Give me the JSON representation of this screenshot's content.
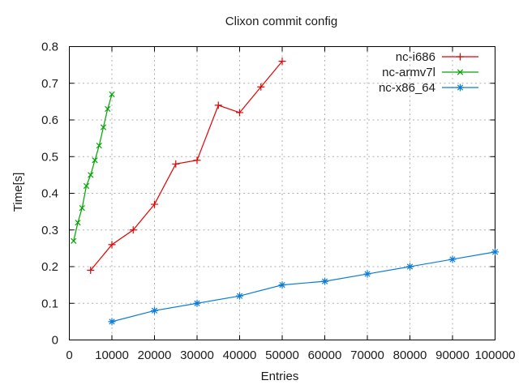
{
  "chart_data": {
    "type": "line",
    "title": "Clixon commit config",
    "xlabel": "Entries",
    "ylabel": "Time[s]",
    "xlim": [
      0,
      100000
    ],
    "ylim": [
      0,
      0.8
    ],
    "grid": true,
    "legend_position": "top-right-inside",
    "xticks": {
      "values": [
        0,
        10000,
        20000,
        30000,
        40000,
        50000,
        60000,
        70000,
        80000,
        90000,
        100000
      ],
      "labels": [
        "0",
        "10000",
        "20000",
        "30000",
        "40000",
        "50000",
        "60000",
        "70000",
        "80000",
        "90000",
        "100000"
      ]
    },
    "yticks": {
      "values": [
        0,
        0.1,
        0.2,
        0.3,
        0.4,
        0.5,
        0.6,
        0.7,
        0.8
      ],
      "labels": [
        "0",
        "0.1",
        "0.2",
        "0.3",
        "0.4",
        "0.5",
        "0.6",
        "0.7",
        "0.8"
      ]
    },
    "series": [
      {
        "name": "nc-i686",
        "color": "#e60000",
        "marker": "plus",
        "x": [
          5000,
          10000,
          15000,
          20000,
          25000,
          30000,
          35000,
          40000,
          45000,
          50000
        ],
        "y": [
          0.19,
          0.26,
          0.3,
          0.37,
          0.48,
          0.49,
          0.64,
          0.62,
          0.69,
          0.76
        ]
      },
      {
        "name": "nc-armv7l",
        "color": "#00a400",
        "marker": "cross",
        "x": [
          1000,
          2000,
          3000,
          4000,
          5000,
          6000,
          7000,
          8000,
          9000,
          10000
        ],
        "y": [
          0.27,
          0.32,
          0.36,
          0.42,
          0.45,
          0.49,
          0.53,
          0.58,
          0.63,
          0.67
        ]
      },
      {
        "name": "nc-x86_64",
        "color": "#0b7cd8",
        "marker": "asterisk",
        "x": [
          10000,
          20000,
          30000,
          40000,
          50000,
          60000,
          70000,
          80000,
          90000,
          100000
        ],
        "y": [
          0.05,
          0.08,
          0.1,
          0.12,
          0.15,
          0.16,
          0.18,
          0.2,
          0.22,
          0.24
        ]
      }
    ],
    "colors": {
      "background": "#ffffff",
      "axis": "#000000",
      "grid": "#b0b0b0",
      "text": "#1c1c1c"
    }
  }
}
